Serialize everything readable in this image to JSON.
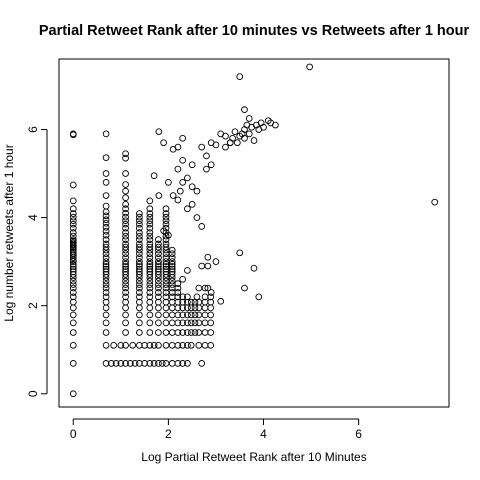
{
  "chart_data": {
    "type": "scatter",
    "title": "Partial Retweet Rank after 10 minutes vs Retweets after 1 hour",
    "xlabel": "Log Partial Retweet Rank after 10 Minutes",
    "ylabel": "Log number retweets after 1 hour",
    "xlim": [
      -0.3,
      7.9
    ],
    "ylim": [
      -0.3,
      7.6
    ],
    "xticks": [
      0,
      2,
      4,
      6
    ],
    "yticks": [
      0,
      2,
      4,
      6
    ],
    "grid": false,
    "legend": "none",
    "marker": "open-circle",
    "columns": [
      {
        "x": 0,
        "y": [
          0,
          0.69,
          1.1,
          1.39,
          1.61,
          1.79,
          1.95,
          2.08,
          2.2,
          2.3,
          2.4,
          2.48,
          2.56,
          2.64,
          2.71,
          2.77,
          2.83,
          2.89,
          2.94,
          3.0,
          3.04,
          3.09,
          3.14,
          3.18,
          3.22,
          3.26,
          3.3,
          3.33,
          3.37,
          3.4,
          3.43,
          3.47,
          3.5,
          3.58,
          3.66,
          3.76,
          3.85,
          3.93,
          4.01,
          4.09,
          4.2,
          4.38,
          4.74,
          5.88,
          5.9
        ]
      },
      {
        "x": 0.69,
        "y": [
          0.69,
          1.1,
          1.39,
          1.61,
          1.79,
          1.95,
          2.08,
          2.2,
          2.3,
          2.4,
          2.48,
          2.56,
          2.64,
          2.71,
          2.77,
          2.83,
          2.89,
          2.94,
          3.0,
          3.09,
          3.18,
          3.26,
          3.33,
          3.4,
          3.5,
          3.6,
          3.69,
          3.78,
          3.87,
          3.95,
          4.04,
          4.13,
          4.26,
          4.5,
          4.8,
          5.0,
          5.36,
          5.9
        ]
      },
      {
        "x": 1.1,
        "y": [
          0.69,
          1.1,
          1.39,
          1.61,
          1.79,
          1.95,
          2.08,
          2.2,
          2.3,
          2.4,
          2.48,
          2.56,
          2.64,
          2.71,
          2.77,
          2.83,
          2.89,
          2.94,
          3.0,
          3.09,
          3.18,
          3.26,
          3.33,
          3.4,
          3.5,
          3.58,
          3.66,
          3.76,
          3.85,
          3.93,
          4.01,
          4.1,
          4.2,
          4.3,
          4.45,
          4.6,
          4.75,
          5.0,
          5.35,
          5.45
        ]
      },
      {
        "x": 1.39,
        "y": [
          0.69,
          1.1,
          1.39,
          1.61,
          1.79,
          1.95,
          2.08,
          2.2,
          2.3,
          2.4,
          2.48,
          2.56,
          2.64,
          2.71,
          2.77,
          2.83,
          2.89,
          2.94,
          3.0,
          3.09,
          3.18,
          3.26,
          3.33,
          3.4,
          3.5,
          3.58,
          3.66,
          3.76,
          3.85,
          3.93,
          4.01,
          4.09
        ]
      },
      {
        "x": 1.61,
        "y": [
          0.69,
          1.1,
          1.39,
          1.61,
          1.79,
          1.95,
          2.08,
          2.2,
          2.3,
          2.4,
          2.48,
          2.56,
          2.64,
          2.71,
          2.77,
          2.83,
          2.89,
          2.94,
          3.0,
          3.09,
          3.18,
          3.26,
          3.33,
          3.4,
          3.5,
          3.58,
          3.66,
          3.76,
          3.85,
          3.93,
          4.01,
          4.09,
          4.2,
          4.38
        ]
      },
      {
        "x": 1.79,
        "y": [
          0.69,
          1.1,
          1.39,
          1.61,
          1.79,
          1.95,
          2.08,
          2.2,
          2.3,
          2.4,
          2.48,
          2.56,
          2.64,
          2.71,
          2.77,
          2.83,
          2.89,
          2.94,
          3.0,
          3.09,
          3.18,
          3.26,
          3.33,
          3.4,
          3.5
        ]
      },
      {
        "x": 1.95,
        "y": [
          0.69,
          1.1,
          1.39,
          1.61,
          1.79,
          1.95,
          2.08,
          2.2,
          2.3,
          2.4,
          2.48,
          2.56,
          2.64,
          2.71,
          2.77,
          2.83,
          2.89,
          2.94,
          3.0,
          3.09,
          3.18,
          3.26,
          3.33,
          3.4,
          3.5,
          3.58,
          3.66,
          3.76,
          3.85,
          3.93,
          4.01,
          4.09,
          4.2
        ]
      },
      {
        "x": 2.08,
        "y": [
          0.69,
          1.1,
          1.39,
          1.61,
          1.79,
          1.95,
          2.08,
          2.2,
          2.3,
          2.4,
          2.48,
          2.56,
          2.64,
          2.71,
          2.77,
          2.83,
          2.89,
          2.94,
          3.0,
          3.09,
          3.18,
          3.26
        ]
      },
      {
        "x": 2.2,
        "y": [
          0.69,
          1.1,
          1.39,
          1.61,
          1.79,
          1.95,
          2.08,
          2.2,
          2.3,
          2.4
        ]
      },
      {
        "x": 2.3,
        "y": [
          0.69,
          1.1,
          1.39,
          1.61,
          1.79,
          1.95,
          2.08,
          2.2
        ]
      },
      {
        "x": 2.4,
        "y": [
          0.69,
          1.1,
          1.39,
          1.61,
          1.79,
          1.95,
          2.08,
          2.2
        ]
      },
      {
        "x": 2.48,
        "y": [
          1.1,
          1.39,
          1.61,
          1.79,
          1.95,
          2.08
        ]
      },
      {
        "x": 2.56,
        "y": [
          1.39,
          1.61,
          1.79,
          1.95,
          2.08
        ]
      },
      {
        "x": 2.64,
        "y": [
          1.1,
          1.39,
          1.61,
          1.79,
          1.95,
          2.08
        ]
      },
      {
        "x": 2.77,
        "y": [
          1.1,
          1.39,
          1.61,
          1.79,
          1.95,
          2.08,
          2.2
        ]
      },
      {
        "x": 2.89,
        "y": [
          1.1,
          1.39,
          1.61,
          1.79,
          1.95,
          2.08,
          2.2
        ]
      }
    ],
    "points": [
      {
        "x": 0.8,
        "y": 0.69
      },
      {
        "x": 0.9,
        "y": 0.69
      },
      {
        "x": 1.0,
        "y": 0.69
      },
      {
        "x": 1.2,
        "y": 0.69
      },
      {
        "x": 1.3,
        "y": 0.69
      },
      {
        "x": 1.5,
        "y": 0.69
      },
      {
        "x": 1.7,
        "y": 0.69
      },
      {
        "x": 1.87,
        "y": 0.69
      },
      {
        "x": 2.7,
        "y": 0.69
      },
      {
        "x": 0.85,
        "y": 1.1
      },
      {
        "x": 1.0,
        "y": 1.1
      },
      {
        "x": 1.25,
        "y": 1.1
      },
      {
        "x": 1.5,
        "y": 1.1
      },
      {
        "x": 1.7,
        "y": 1.1
      },
      {
        "x": 2.6,
        "y": 2.2
      },
      {
        "x": 2.64,
        "y": 2.4
      },
      {
        "x": 2.77,
        "y": 2.4
      },
      {
        "x": 2.83,
        "y": 2.4
      },
      {
        "x": 2.9,
        "y": 2.3
      },
      {
        "x": 2.7,
        "y": 2.9
      },
      {
        "x": 2.83,
        "y": 2.9
      },
      {
        "x": 2.83,
        "y": 3.1
      },
      {
        "x": 3.0,
        "y": 3.0
      },
      {
        "x": 3.1,
        "y": 2.1
      },
      {
        "x": 3.5,
        "y": 3.2
      },
      {
        "x": 3.6,
        "y": 2.4
      },
      {
        "x": 3.8,
        "y": 2.85
      },
      {
        "x": 3.9,
        "y": 2.2
      },
      {
        "x": 7.6,
        "y": 4.35
      },
      {
        "x": 2.2,
        "y": 2.5
      },
      {
        "x": 2.3,
        "y": 2.6
      },
      {
        "x": 2.4,
        "y": 2.8
      },
      {
        "x": 1.9,
        "y": 3.7
      },
      {
        "x": 2.0,
        "y": 3.6
      },
      {
        "x": 2.1,
        "y": 4.5
      },
      {
        "x": 2.2,
        "y": 4.4
      },
      {
        "x": 2.25,
        "y": 4.6
      },
      {
        "x": 2.3,
        "y": 4.8
      },
      {
        "x": 2.4,
        "y": 4.2
      },
      {
        "x": 2.5,
        "y": 4.3
      },
      {
        "x": 2.6,
        "y": 4.0
      },
      {
        "x": 2.7,
        "y": 3.8
      },
      {
        "x": 2.4,
        "y": 4.9
      },
      {
        "x": 2.5,
        "y": 5.2
      },
      {
        "x": 2.3,
        "y": 5.3
      },
      {
        "x": 2.2,
        "y": 5.1
      },
      {
        "x": 2.1,
        "y": 5.55
      },
      {
        "x": 2.2,
        "y": 5.6
      },
      {
        "x": 2.3,
        "y": 5.8
      },
      {
        "x": 1.8,
        "y": 5.95
      },
      {
        "x": 1.9,
        "y": 5.7
      },
      {
        "x": 2.0,
        "y": 4.8
      },
      {
        "x": 1.7,
        "y": 4.95
      },
      {
        "x": 1.8,
        "y": 4.5
      },
      {
        "x": 2.7,
        "y": 5.6
      },
      {
        "x": 2.8,
        "y": 5.4
      },
      {
        "x": 2.8,
        "y": 5.1
      },
      {
        "x": 2.9,
        "y": 5.2
      },
      {
        "x": 2.9,
        "y": 5.7
      },
      {
        "x": 3.0,
        "y": 5.65
      },
      {
        "x": 3.1,
        "y": 5.9
      },
      {
        "x": 3.2,
        "y": 5.6
      },
      {
        "x": 3.3,
        "y": 5.7
      },
      {
        "x": 3.35,
        "y": 5.8
      },
      {
        "x": 3.4,
        "y": 5.95
      },
      {
        "x": 3.45,
        "y": 5.7
      },
      {
        "x": 3.5,
        "y": 5.85
      },
      {
        "x": 3.55,
        "y": 5.9
      },
      {
        "x": 3.6,
        "y": 6.0
      },
      {
        "x": 3.6,
        "y": 5.8
      },
      {
        "x": 3.65,
        "y": 6.1
      },
      {
        "x": 3.7,
        "y": 5.9
      },
      {
        "x": 3.75,
        "y": 6.05
      },
      {
        "x": 3.8,
        "y": 5.75
      },
      {
        "x": 3.85,
        "y": 6.1
      },
      {
        "x": 3.9,
        "y": 6.0
      },
      {
        "x": 3.95,
        "y": 6.15
      },
      {
        "x": 4.0,
        "y": 6.05
      },
      {
        "x": 4.1,
        "y": 6.2
      },
      {
        "x": 4.15,
        "y": 6.15
      },
      {
        "x": 4.25,
        "y": 6.1
      },
      {
        "x": 3.6,
        "y": 6.45
      },
      {
        "x": 3.7,
        "y": 6.25
      },
      {
        "x": 3.5,
        "y": 7.2
      },
      {
        "x": 4.97,
        "y": 7.42
      },
      {
        "x": 3.3,
        "y": 5.7
      },
      {
        "x": 3.2,
        "y": 5.85
      },
      {
        "x": 2.6,
        "y": 4.6
      },
      {
        "x": 2.5,
        "y": 4.7
      }
    ]
  }
}
